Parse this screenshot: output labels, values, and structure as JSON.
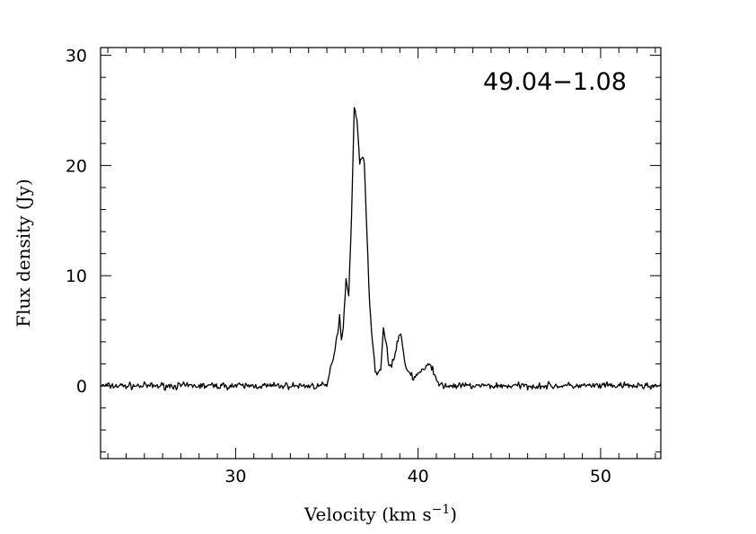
{
  "chart_data": {
    "type": "line",
    "title": "49.04−1.08",
    "xlabel": "Velocity (km s",
    "xlabel_superscript": "−1",
    "xlabel_close": ")",
    "ylabel": "Flux density (Jy)",
    "xlim": [
      22.6,
      53.3
    ],
    "ylim": [
      -6.6,
      30.7
    ],
    "xticks": [
      30,
      40,
      50
    ],
    "xtick_labels": [
      "30",
      "40",
      "50"
    ],
    "yticks": [
      0,
      10,
      20,
      30
    ],
    "ytick_labels": [
      "0",
      "10",
      "20",
      "30"
    ],
    "x_minor_step": 1,
    "y_minor_step": 2,
    "grid": false,
    "series": [
      {
        "x": [
          22.6,
          35.0,
          35.2,
          35.4,
          35.5,
          35.6,
          35.7,
          35.8,
          35.9,
          36.05,
          36.2,
          36.35,
          36.5,
          36.65,
          36.8,
          36.95,
          37.05,
          37.2,
          37.35,
          37.5,
          37.65,
          37.8,
          37.95,
          38.1,
          38.25,
          38.4,
          38.55,
          38.7,
          38.85,
          39.0,
          39.15,
          39.3,
          39.45,
          39.6,
          39.75,
          39.9,
          40.05,
          40.2,
          40.35,
          40.5,
          40.65,
          40.8,
          40.95,
          41.1,
          41.25,
          41.4,
          41.6,
          53.3
        ],
        "y": [
          0,
          0,
          1.5,
          3.0,
          4.0,
          5.0,
          6.3,
          4.2,
          5.5,
          9.6,
          8.5,
          15.0,
          25.3,
          24.0,
          20.4,
          21.0,
          20.0,
          14.0,
          7.0,
          4.0,
          1.5,
          1.1,
          1.6,
          5.2,
          3.8,
          1.9,
          2.0,
          2.5,
          3.8,
          4.9,
          3.5,
          1.8,
          1.3,
          1.2,
          0.6,
          1.0,
          1.1,
          1.5,
          1.3,
          1.8,
          2.1,
          1.6,
          0.6,
          0.2,
          0.1,
          0,
          0,
          0
        ]
      }
    ]
  }
}
